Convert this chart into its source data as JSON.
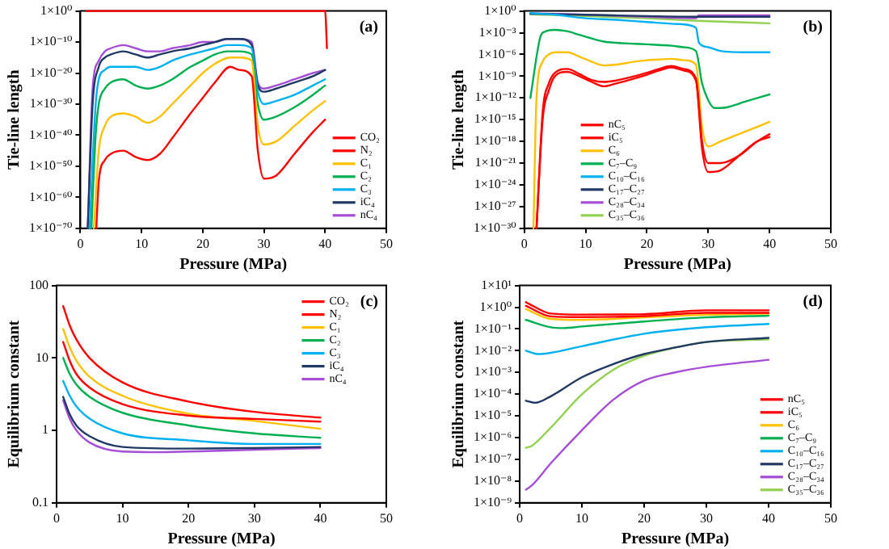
{
  "chart_data": [
    {
      "type": "line",
      "xlabel": "Pressure (MPa)",
      "ylabel": "Tie-line length",
      "annotations": [
        "(a)"
      ],
      "log": "y",
      "grid": false,
      "legend": "bottom right",
      "xlim": [
        0,
        50
      ],
      "xticks": [
        0,
        10,
        20,
        30,
        40,
        50
      ],
      "ylim": [
        1e-70,
        1
      ],
      "yticks": [
        {
          "value": 1,
          "label": "1×10⁰"
        },
        {
          "value": 1e-10,
          "label": "1×10⁻¹⁰"
        },
        {
          "value": 1e-20,
          "label": "1×10⁻²⁰"
        },
        {
          "value": 1e-30,
          "label": "1×10⁻³⁰"
        },
        {
          "value": 1e-40,
          "label": "1×10⁻⁴⁰"
        },
        {
          "value": 1e-50,
          "label": "1×10⁻⁵⁰"
        },
        {
          "value": 1e-60,
          "label": "1×10⁻⁶⁰"
        },
        {
          "value": 1e-70,
          "label": "1×10⁻⁷⁰"
        }
      ],
      "series": [
        {
          "name": "CO₂",
          "color": "#ff0000",
          "x": [
            1,
            40,
            40.3
          ],
          "values": [
            1,
            1,
            1e-12
          ]
        },
        {
          "name": "N₂",
          "color": "#ff0000",
          "x": [
            2.6,
            3,
            4,
            5,
            7,
            9,
            11,
            13,
            15,
            18,
            20,
            22,
            24.5,
            26,
            28,
            29,
            30,
            32,
            35,
            38,
            40
          ],
          "values": [
            1e-70,
            1e-55,
            1e-48,
            1e-46,
            1e-45,
            1e-47,
            1e-48,
            1e-46,
            1e-41,
            1e-33,
            1e-28,
            1e-23,
            1e-18,
            1e-19,
            1e-21,
            1e-45,
            1e-54,
            1e-53,
            1e-46,
            1e-39,
            1e-35
          ]
        },
        {
          "name": "C₁",
          "color": "#ffc000",
          "x": [
            2.2,
            3,
            4,
            5,
            7,
            9,
            11,
            13,
            15,
            18,
            20,
            22,
            24.5,
            26,
            28,
            29,
            30,
            32,
            35,
            38,
            40
          ],
          "values": [
            1e-70,
            1e-45,
            1e-37,
            1e-34,
            1e-33,
            1e-34,
            1e-36,
            1e-34,
            1e-30,
            1e-24,
            1e-20,
            1e-17,
            1e-15,
            1e-15,
            1e-16,
            1e-37,
            1e-43,
            1e-42,
            1e-37,
            1e-32,
            1e-29
          ]
        },
        {
          "name": "C₂",
          "color": "#00b050",
          "x": [
            1.8,
            2.5,
            3,
            4,
            5,
            7,
            9,
            11,
            13,
            15,
            18,
            20,
            22,
            24,
            26,
            28,
            29,
            30,
            32,
            35,
            38,
            40
          ],
          "values": [
            1e-70,
            1e-40,
            1e-30,
            1e-25,
            1e-23,
            1e-22,
            1e-24,
            1e-25,
            1e-24,
            1e-22,
            1e-18,
            1e-16,
            1e-14,
            1e-13,
            1e-13,
            1e-14,
            1e-30,
            1e-35,
            1e-34,
            1e-31,
            1e-27,
            1e-24
          ]
        },
        {
          "name": "C₃",
          "color": "#00b0f0",
          "x": [
            1.5,
            2.5,
            3,
            4,
            5,
            7,
            9,
            11,
            13,
            15,
            18,
            20,
            22,
            24,
            26,
            28,
            29,
            30,
            32,
            35,
            38,
            40
          ],
          "values": [
            1e-70,
            1e-30,
            1e-22,
            1e-19,
            1e-18,
            1e-18,
            1e-18,
            1e-19,
            1e-18,
            1e-16,
            1e-14,
            1e-13,
            1e-12,
            1e-11,
            1e-11,
            1e-12,
            1e-26,
            1e-30,
            1e-29,
            1e-27,
            1e-24,
            1e-22
          ]
        },
        {
          "name": "iC₄",
          "color": "#203864",
          "x": [
            1.2,
            2,
            3,
            4,
            5,
            7,
            9,
            11,
            13,
            15,
            18,
            20,
            22,
            24,
            26,
            28,
            29,
            30,
            32,
            35,
            38,
            40
          ],
          "values": [
            1e-70,
            1e-30,
            1e-18,
            1e-15,
            1e-14,
            1e-13,
            1e-14,
            1e-15,
            1e-14,
            1e-13,
            1e-12,
            1e-11,
            1e-10,
            1e-09,
            1e-09,
            1e-11,
            1e-24,
            1e-26,
            1e-25,
            1e-23,
            1e-21,
            1e-19
          ]
        },
        {
          "name": "nC₄",
          "color": "#a64dd8",
          "x": [
            1.2,
            2,
            3,
            4,
            5,
            7,
            9,
            11,
            13,
            15,
            18,
            20,
            22,
            24,
            26,
            28,
            29,
            30,
            32,
            35,
            38,
            40
          ],
          "values": [
            1e-70,
            1e-25,
            1e-16,
            1e-13,
            1e-12,
            1e-11,
            1e-12,
            1e-13,
            1e-13,
            1e-12,
            1e-11,
            1e-10,
            1e-10,
            1e-09,
            1e-09,
            1e-10,
            1e-23,
            1e-25,
            1e-24,
            1e-22,
            1e-20,
            1e-19
          ]
        }
      ]
    },
    {
      "type": "line",
      "xlabel": "Pressure (MPa)",
      "ylabel": "Tie-line length",
      "annotations": [
        "(b)"
      ],
      "log": "y",
      "grid": false,
      "legend": "bottom left",
      "xlim": [
        0,
        50
      ],
      "xticks": [
        0,
        10,
        20,
        30,
        40,
        50
      ],
      "ylim": [
        1e-30,
        1
      ],
      "yticks": [
        {
          "value": 1,
          "label": "1×10⁰"
        },
        {
          "value": 0.001,
          "label": "1×10⁻³"
        },
        {
          "value": 1e-06,
          "label": "1×10⁻⁶"
        },
        {
          "value": 1e-09,
          "label": "1×10⁻⁹"
        },
        {
          "value": 1e-12,
          "label": "1×10⁻¹²"
        },
        {
          "value": 1e-15,
          "label": "1×10⁻¹⁵"
        },
        {
          "value": 1e-18,
          "label": "1×10⁻¹⁸"
        },
        {
          "value": 1e-21,
          "label": "1×10⁻²¹"
        },
        {
          "value": 1e-24,
          "label": "1×10⁻²⁴"
        },
        {
          "value": 1e-27,
          "label": "1×10⁻²⁷"
        },
        {
          "value": 1e-30,
          "label": "1×10⁻³⁰"
        }
      ],
      "series": [
        {
          "name": "nC₅",
          "color": "#ff0000",
          "x": [
            2,
            3,
            4,
            5,
            7,
            9,
            11,
            13,
            15,
            18,
            20,
            22,
            24,
            26,
            28,
            29,
            30,
            32,
            35,
            38,
            40
          ],
          "values": [
            1e-30,
            1e-14,
            1e-10,
            3e-09,
            1e-08,
            2e-09,
            3e-10,
            1.6e-10,
            2.5e-10,
            1e-09,
            3e-09,
            1e-08,
            2.5e-08,
            1e-08,
            5e-10,
            1e-18,
            1e-21,
            1e-21,
            1e-20,
            1e-18,
            1e-17
          ]
        },
        {
          "name": "iC₅",
          "color": "#ff0000",
          "x": [
            2,
            3,
            4,
            5,
            7,
            9,
            11,
            13,
            15,
            18,
            20,
            22,
            24,
            26,
            28,
            29,
            30,
            32,
            35,
            38,
            40
          ],
          "values": [
            1e-30,
            1e-15,
            1e-11,
            1e-09,
            4e-09,
            1e-09,
            1.6e-10,
            4e-11,
            1e-10,
            5e-10,
            1.6e-09,
            6e-09,
            1.6e-08,
            6e-09,
            2.5e-10,
            1e-19,
            6e-23,
            1e-22,
            1e-20,
            1e-18,
            4e-18
          ]
        },
        {
          "name": "C₆",
          "color": "#ffc000",
          "x": [
            1.5,
            2,
            3,
            4,
            5,
            7,
            9,
            11,
            13,
            15,
            18,
            20,
            22,
            24,
            26,
            28,
            29,
            30,
            32,
            35,
            38,
            40
          ],
          "values": [
            1e-30,
            1e-12,
            1e-07,
            1e-06,
            2e-06,
            2e-06,
            5e-07,
            1e-07,
            3e-08,
            4e-08,
            1e-07,
            1.6e-07,
            2e-07,
            2.5e-07,
            1.6e-07,
            4e-08,
            1e-16,
            2e-19,
            1e-18,
            1e-17,
            1e-16,
            5e-16
          ]
        },
        {
          "name": "C₇–C₉",
          "color": "#00b050",
          "x": [
            1,
            2.5,
            3,
            5,
            7,
            9,
            11,
            13,
            15,
            18,
            20,
            22,
            24,
            26,
            28,
            29,
            30,
            31,
            33,
            36,
            40
          ],
          "values": [
            1e-12,
            0.0001,
            0.001,
            0.0025,
            0.0016,
            0.0005,
            0.00016,
            6e-05,
            4e-05,
            3e-05,
            2.5e-05,
            2e-05,
            1.6e-05,
            1e-05,
            3e-06,
            1e-10,
            5e-13,
            4e-14,
            5e-14,
            3e-13,
            3e-12
          ]
        },
        {
          "name": "C₁₀–C₁₆",
          "color": "#00b0f0",
          "x": [
            1,
            5,
            10,
            15,
            20,
            25,
            28,
            28.5,
            30,
            32,
            36,
            40
          ],
          "values": [
            0.5,
            0.3,
            0.1,
            0.06,
            0.03,
            0.016,
            0.005,
            4e-05,
            1e-05,
            3e-06,
            2e-06,
            2e-06
          ]
        },
        {
          "name": "C₁₇–C₂₇",
          "color": "#203864",
          "x": [
            1,
            10,
            20,
            28,
            29,
            40
          ],
          "values": [
            0.4,
            0.3,
            0.2,
            0.16,
            0.16,
            0.16
          ]
        },
        {
          "name": "C₂₈–C₃₄",
          "color": "#a64dd8",
          "x": [
            1,
            10,
            20,
            28,
            28.5,
            40
          ],
          "values": [
            0.5,
            0.3,
            0.16,
            0.1,
            0.25,
            0.25
          ]
        },
        {
          "name": "C₃₅–C₃₆",
          "color": "#92d050",
          "x": [
            1,
            10,
            20,
            28,
            40
          ],
          "values": [
            0.35,
            0.2,
            0.1,
            0.045,
            0.02
          ]
        }
      ]
    },
    {
      "type": "line",
      "xlabel": "Pressure (MPa)",
      "ylabel": "Equilibrium constant",
      "annotations": [
        "(c)"
      ],
      "log": "y",
      "grid": false,
      "legend": "top right",
      "xlim": [
        0,
        50
      ],
      "xticks": [
        0,
        10,
        20,
        30,
        40,
        50
      ],
      "ylim": [
        0.1,
        100
      ],
      "yticks": [
        0.1,
        1,
        10,
        100
      ],
      "series": [
        {
          "name": "CO₂",
          "color": "#ff0000",
          "x": [
            1,
            2,
            3,
            5,
            10,
            20,
            30,
            40
          ],
          "values": [
            52,
            28,
            18,
            10,
            4.6,
            2.5,
            1.8,
            1.5
          ]
        },
        {
          "name": "N₂",
          "color": "#ff0000",
          "x": [
            1,
            2,
            3,
            5,
            10,
            20,
            30,
            40
          ],
          "values": [
            16.6,
            9.1,
            6,
            3.9,
            2.3,
            1.6,
            1.44,
            1.32
          ]
        },
        {
          "name": "C₁",
          "color": "#ffc000",
          "x": [
            1,
            2,
            3,
            5,
            10,
            20,
            30,
            40
          ],
          "values": [
            25,
            14,
            9.2,
            5.5,
            3.0,
            1.7,
            1.35,
            1.05
          ]
        },
        {
          "name": "C₂",
          "color": "#00b050",
          "x": [
            1,
            2,
            3,
            5,
            10,
            20,
            30,
            40
          ],
          "values": [
            10,
            6,
            4.3,
            2.9,
            1.75,
            1.17,
            0.91,
            0.79
          ]
        },
        {
          "name": "C₃",
          "color": "#00b0f0",
          "x": [
            1,
            2,
            3,
            5,
            10,
            20,
            30,
            40
          ],
          "values": [
            4.8,
            3.0,
            2.15,
            1.45,
            0.91,
            0.73,
            0.65,
            0.65
          ]
        },
        {
          "name": "iC₄",
          "color": "#203864",
          "x": [
            1,
            2,
            3,
            5,
            10,
            20,
            30,
            40
          ],
          "values": [
            2.9,
            1.66,
            1.17,
            0.83,
            0.59,
            0.56,
            0.57,
            0.59
          ]
        },
        {
          "name": "nC₄",
          "color": "#a64dd8",
          "x": [
            1,
            2,
            3,
            5,
            10,
            15,
            20,
            30,
            40
          ],
          "values": [
            2.6,
            1.44,
            1.0,
            0.68,
            0.51,
            0.5,
            0.51,
            0.54,
            0.57
          ]
        }
      ]
    },
    {
      "type": "line",
      "xlabel": "Pressure (MPa)",
      "ylabel": "Equilibrium constant",
      "annotations": [
        "(d)"
      ],
      "log": "y",
      "grid": false,
      "legend": "bottom right",
      "xlim": [
        0,
        50
      ],
      "xticks": [
        0,
        10,
        20,
        30,
        40,
        50
      ],
      "ylim": [
        1e-09,
        10
      ],
      "yticks": [
        {
          "value": 10,
          "label": "1×10¹"
        },
        {
          "value": 1,
          "label": "1×10⁰"
        },
        {
          "value": 0.1,
          "label": "1×10⁻¹"
        },
        {
          "value": 0.01,
          "label": "1×10⁻²"
        },
        {
          "value": 0.001,
          "label": "1×10⁻³"
        },
        {
          "value": 0.0001,
          "label": "1×10⁻⁴"
        },
        {
          "value": 1e-05,
          "label": "1×10⁻⁵"
        },
        {
          "value": 1e-06,
          "label": "1×10⁻⁶"
        },
        {
          "value": 1e-07,
          "label": "1×10⁻⁷"
        },
        {
          "value": 1e-08,
          "label": "1×10⁻⁸"
        },
        {
          "value": 1e-09,
          "label": "1×10⁻⁹"
        }
      ],
      "series": [
        {
          "name": "nC₅",
          "color": "#ff0000",
          "x": [
            1,
            5,
            10,
            20,
            30,
            40
          ],
          "values": [
            1.7,
            0.51,
            0.46,
            0.48,
            0.72,
            0.72
          ]
        },
        {
          "name": "iC₅",
          "color": "#ff0000",
          "x": [
            1,
            5,
            10,
            20,
            30,
            40
          ],
          "values": [
            1.15,
            0.38,
            0.35,
            0.39,
            0.55,
            0.55
          ]
        },
        {
          "name": "C₆",
          "color": "#ffc000",
          "x": [
            1,
            5,
            10,
            20,
            30,
            40
          ],
          "values": [
            0.82,
            0.29,
            0.26,
            0.34,
            0.45,
            0.51
          ]
        },
        {
          "name": "C₇–C₉",
          "color": "#00b050",
          "x": [
            1,
            5,
            7,
            10,
            20,
            30,
            40
          ],
          "values": [
            0.26,
            0.12,
            0.11,
            0.13,
            0.22,
            0.34,
            0.41
          ]
        },
        {
          "name": "C₁₀–C₁₆",
          "color": "#00b0f0",
          "x": [
            1,
            3,
            5,
            10,
            20,
            30,
            40
          ],
          "values": [
            0.01,
            0.007,
            0.008,
            0.016,
            0.06,
            0.12,
            0.17
          ]
        },
        {
          "name": "C₁₇–C₂₇",
          "color": "#203864",
          "x": [
            1,
            2.5,
            5,
            10,
            15,
            20,
            25,
            30,
            40
          ],
          "values": [
            5e-05,
            4e-05,
            8e-05,
            0.0006,
            0.0024,
            0.007,
            0.014,
            0.025,
            0.039
          ]
        },
        {
          "name": "C₂₈–C₃₄",
          "color": "#a64dd8",
          "x": [
            1,
            2,
            5,
            10,
            15,
            20,
            25,
            30,
            40
          ],
          "values": [
            4e-09,
            6.5e-09,
            6.6e-08,
            2.2e-06,
            5.4e-05,
            0.00042,
            0.001,
            0.0018,
            0.0038
          ]
        },
        {
          "name": "C₃₅–C₃₆",
          "color": "#92d050",
          "x": [
            1,
            2,
            5,
            10,
            15,
            20,
            25,
            30,
            40
          ],
          "values": [
            3.4e-07,
            4.3e-07,
            2.9e-06,
            9.8e-05,
            0.0013,
            0.0058,
            0.014,
            0.025,
            0.033
          ]
        }
      ]
    }
  ]
}
